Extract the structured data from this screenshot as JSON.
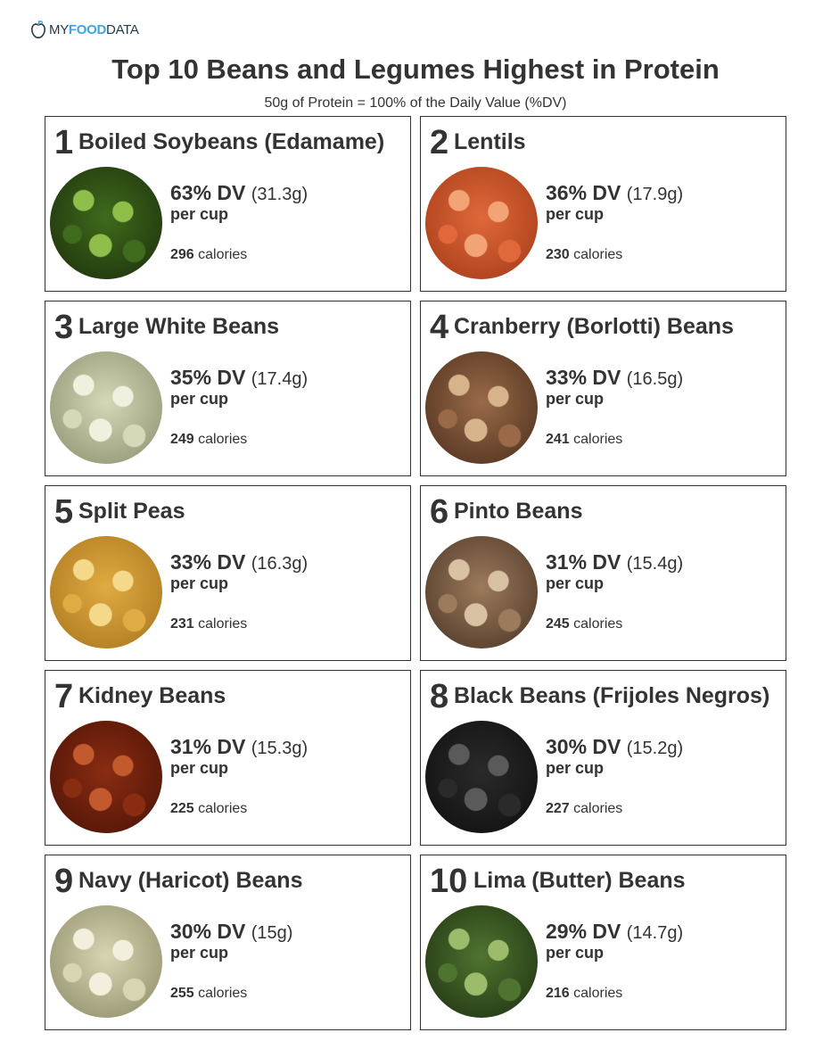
{
  "logo": {
    "my": "MY",
    "food": "FOOD",
    "data": "DATA"
  },
  "title": "Top 10 Beans and Legumes Highest in Protein",
  "subtitle": "50g of Protein = 100% of the Daily Value (%DV)",
  "per_label": "per cup",
  "calories_label": "calories",
  "items": [
    {
      "rank": "1",
      "name": "Boiled Soybeans (Edamame)",
      "dv": "63% DV",
      "grams": "(31.3g)",
      "calories": "296",
      "colors": [
        "#8fbf4a",
        "#3f6b1c",
        "#1c2e0c"
      ]
    },
    {
      "rank": "2",
      "name": "Lentils",
      "dv": "36% DV",
      "grams": "(17.9g)",
      "calories": "230",
      "colors": [
        "#f2a477",
        "#e0683a",
        "#a33a16"
      ]
    },
    {
      "rank": "3",
      "name": "Large White Beans",
      "dv": "35% DV",
      "grams": "(17.4g)",
      "calories": "249",
      "colors": [
        "#f0f0de",
        "#d6d8b8",
        "#8a8f6c"
      ]
    },
    {
      "rank": "4",
      "name": "Cranberry (Borlotti) Beans",
      "dv": "33% DV",
      "grams": "(16.5g)",
      "calories": "241",
      "colors": [
        "#d6b38a",
        "#9a6a48",
        "#4a2e1c"
      ]
    },
    {
      "rank": "5",
      "name": "Split Peas",
      "dv": "33% DV",
      "grams": "(16.3g)",
      "calories": "231",
      "colors": [
        "#f5d98a",
        "#e0ab42",
        "#a8741c"
      ]
    },
    {
      "rank": "6",
      "name": "Pinto Beans",
      "dv": "31% DV",
      "grams": "(15.4g)",
      "calories": "245",
      "colors": [
        "#d9c2a4",
        "#9c7a5c",
        "#4a3424"
      ]
    },
    {
      "rank": "7",
      "name": "Kidney Beans",
      "dv": "31% DV",
      "grams": "(15.3g)",
      "calories": "225",
      "colors": [
        "#c25a2e",
        "#8a2c12",
        "#4a1206"
      ]
    },
    {
      "rank": "8",
      "name": "Black Beans (Frijoles Negros)",
      "dv": "30% DV",
      "grams": "(15.2g)",
      "calories": "227",
      "colors": [
        "#5a5a5a",
        "#2a2a2a",
        "#0e0e0e"
      ]
    },
    {
      "rank": "9",
      "name": "Navy (Haricot) Beans",
      "dv": "30% DV",
      "grams": "(15g)",
      "calories": "255",
      "colors": [
        "#f2f0dc",
        "#d8d6b2",
        "#8c8a66"
      ]
    },
    {
      "rank": "10",
      "name": "Lima (Butter) Beans",
      "dv": "29% DV",
      "grams": "(14.7g)",
      "calories": "216",
      "colors": [
        "#9cbc6c",
        "#4f7430",
        "#1e3010"
      ]
    }
  ]
}
